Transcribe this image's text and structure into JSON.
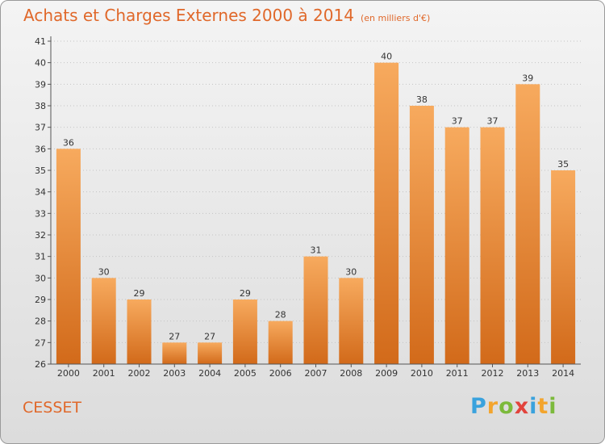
{
  "header": {
    "title": "Achats et Charges Externes 2000 à 2014",
    "unit": "(en milliers d'€)"
  },
  "footer": {
    "place": "CESSET",
    "logo": [
      "P",
      "r",
      "o",
      "x",
      "i",
      "t",
      "i"
    ]
  },
  "colors": {
    "accent": "#e0682a",
    "bar_top": "#f7aa5e",
    "bar_bottom": "#d26a1a"
  },
  "chart_data": {
    "type": "bar",
    "title": "Achats et Charges Externes 2000 à 2014",
    "subtitle": "(en milliers d'€)",
    "categories": [
      "2000",
      "2001",
      "2002",
      "2003",
      "2004",
      "2005",
      "2006",
      "2007",
      "2008",
      "2009",
      "2010",
      "2011",
      "2012",
      "2013",
      "2014"
    ],
    "values": [
      36,
      30,
      29,
      27,
      27,
      29,
      28,
      31,
      30,
      40,
      38,
      37,
      37,
      39,
      35
    ],
    "ylim": [
      26,
      41
    ],
    "yticks": [
      26,
      27,
      28,
      29,
      30,
      31,
      32,
      33,
      34,
      35,
      36,
      37,
      38,
      39,
      40,
      41
    ],
    "grid": true,
    "data_labels": true
  }
}
